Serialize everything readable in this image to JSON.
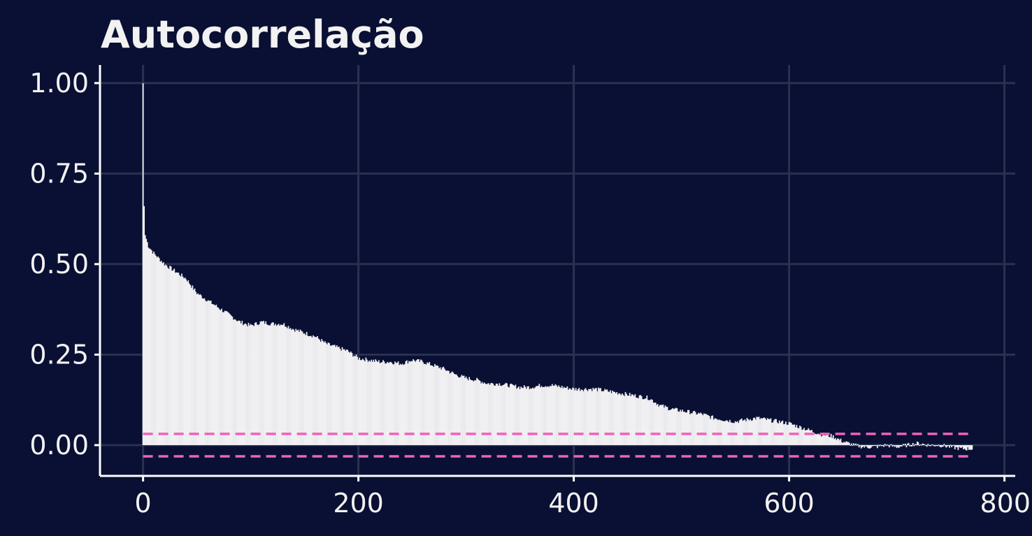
{
  "chart_data": {
    "type": "bar",
    "title": "Autocorrelação",
    "xlabel": "",
    "ylabel": "",
    "xlim": [
      -40,
      810
    ],
    "ylim": [
      -0.085,
      1.05
    ],
    "x_ticks": [
      0,
      200,
      400,
      600,
      800
    ],
    "y_ticks": [
      0.0,
      0.25,
      0.5,
      0.75,
      1.0
    ],
    "x_tick_labels": [
      "0",
      "200",
      "400",
      "600",
      "800"
    ],
    "y_tick_labels": [
      "0.00",
      "0.25",
      "0.50",
      "0.75",
      "1.00"
    ],
    "grid": true,
    "legend": "none",
    "lag_max": 770,
    "acf_anchors": [
      [
        0,
        1.0
      ],
      [
        1,
        0.66
      ],
      [
        2,
        0.58
      ],
      [
        5,
        0.55
      ],
      [
        10,
        0.53
      ],
      [
        20,
        0.5
      ],
      [
        30,
        0.48
      ],
      [
        40,
        0.46
      ],
      [
        50,
        0.42
      ],
      [
        60,
        0.4
      ],
      [
        70,
        0.38
      ],
      [
        80,
        0.36
      ],
      [
        90,
        0.34
      ],
      [
        100,
        0.33
      ],
      [
        110,
        0.34
      ],
      [
        120,
        0.335
      ],
      [
        130,
        0.335
      ],
      [
        140,
        0.32
      ],
      [
        150,
        0.31
      ],
      [
        160,
        0.3
      ],
      [
        170,
        0.28
      ],
      [
        180,
        0.27
      ],
      [
        190,
        0.26
      ],
      [
        200,
        0.24
      ],
      [
        210,
        0.235
      ],
      [
        220,
        0.23
      ],
      [
        230,
        0.23
      ],
      [
        240,
        0.225
      ],
      [
        250,
        0.235
      ],
      [
        260,
        0.23
      ],
      [
        270,
        0.22
      ],
      [
        280,
        0.21
      ],
      [
        290,
        0.195
      ],
      [
        300,
        0.185
      ],
      [
        310,
        0.18
      ],
      [
        320,
        0.17
      ],
      [
        330,
        0.17
      ],
      [
        340,
        0.165
      ],
      [
        350,
        0.16
      ],
      [
        360,
        0.16
      ],
      [
        370,
        0.165
      ],
      [
        380,
        0.165
      ],
      [
        390,
        0.16
      ],
      [
        400,
        0.155
      ],
      [
        410,
        0.155
      ],
      [
        420,
        0.155
      ],
      [
        430,
        0.15
      ],
      [
        440,
        0.145
      ],
      [
        450,
        0.14
      ],
      [
        460,
        0.135
      ],
      [
        470,
        0.13
      ],
      [
        480,
        0.11
      ],
      [
        490,
        0.1
      ],
      [
        500,
        0.095
      ],
      [
        510,
        0.09
      ],
      [
        520,
        0.085
      ],
      [
        530,
        0.075
      ],
      [
        540,
        0.07
      ],
      [
        550,
        0.065
      ],
      [
        560,
        0.07
      ],
      [
        570,
        0.075
      ],
      [
        580,
        0.07
      ],
      [
        590,
        0.065
      ],
      [
        600,
        0.06
      ],
      [
        610,
        0.05
      ],
      [
        620,
        0.04
      ],
      [
        630,
        0.03
      ],
      [
        640,
        0.025
      ],
      [
        650,
        0.01
      ],
      [
        660,
        0.0
      ],
      [
        670,
        -0.005
      ],
      [
        680,
        -0.005
      ],
      [
        690,
        0.0
      ],
      [
        700,
        -0.005
      ],
      [
        710,
        0.0
      ],
      [
        720,
        0.005
      ],
      [
        730,
        0.0
      ],
      [
        740,
        0.0
      ],
      [
        750,
        -0.005
      ],
      [
        760,
        -0.01
      ],
      [
        770,
        -0.01
      ]
    ],
    "acf_jitter": 0.006,
    "confidence_band": [
      -0.031,
      0.031
    ],
    "colors": {
      "background": "#0a1033",
      "bars": "#f0f0f2",
      "grid": "#2a3150",
      "axis": "#ffffff",
      "text": "#f2f2f2",
      "confidence": "#f062b8"
    }
  }
}
